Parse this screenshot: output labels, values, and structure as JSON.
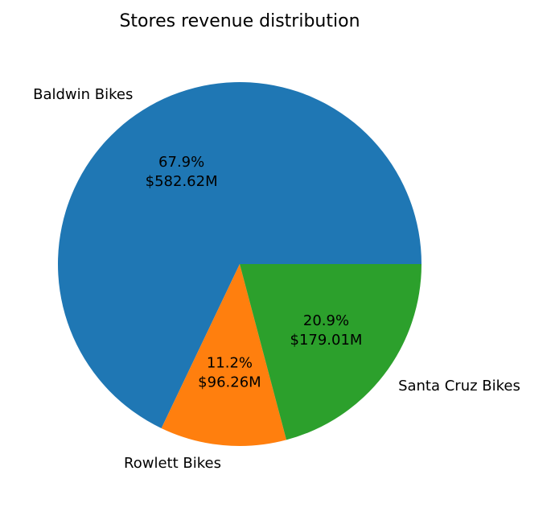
{
  "chart_data": {
    "type": "pie",
    "title": "Stores revenue distribution",
    "slices": [
      {
        "label": "Baldwin Bikes",
        "value": 582.62,
        "percent_text": "67.9%",
        "value_text": "$582.62M",
        "color": "#1f77b4"
      },
      {
        "label": "Rowlett Bikes",
        "value": 96.26,
        "percent_text": "11.2%",
        "value_text": "$96.26M",
        "color": "#ff7f0e"
      },
      {
        "label": "Santa Cruz Bikes",
        "value": 179.01,
        "percent_text": "20.9%",
        "value_text": "$179.01M",
        "color": "#2ca02c"
      }
    ],
    "start_angle": 0,
    "direction": "counterclockwise",
    "legend": "none"
  }
}
